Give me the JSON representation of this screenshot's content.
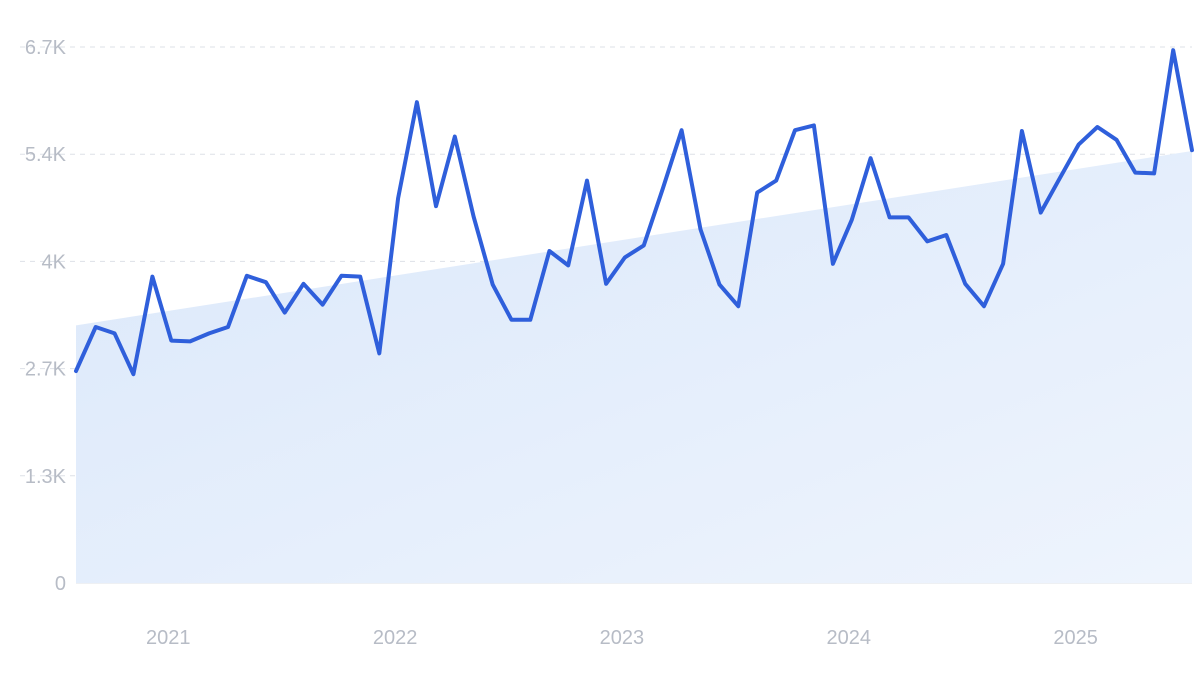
{
  "chart_data": {
    "type": "line",
    "title": "",
    "xlabel": "",
    "ylabel": "",
    "grid": true,
    "legend": "none",
    "ylim": [
      0,
      6700
    ],
    "xlim": [
      2020.58,
      2025.5
    ],
    "y_ticks": [
      {
        "value": 0,
        "label": "0"
      },
      {
        "value": 1340,
        "label": "1.3K"
      },
      {
        "value": 2680,
        "label": "2.7K"
      },
      {
        "value": 4020,
        "label": "4K"
      },
      {
        "value": 5360,
        "label": "5.4K"
      },
      {
        "value": 6700,
        "label": "6.7K"
      }
    ],
    "x_ticks": [
      {
        "value": 2021,
        "label": "2021"
      },
      {
        "value": 2022,
        "label": "2022"
      },
      {
        "value": 2023,
        "label": "2023"
      },
      {
        "value": 2024,
        "label": "2024"
      },
      {
        "value": 2025,
        "label": "2025"
      }
    ],
    "series": [
      {
        "color": "#2f5fdb",
        "x": [
          2020.58,
          2020.667,
          2020.75,
          2020.833,
          2020.917,
          2021.0,
          2021.083,
          2021.167,
          2021.25,
          2021.333,
          2021.417,
          2021.5,
          2021.583,
          2021.667,
          2021.75,
          2021.833,
          2021.917,
          2022.0,
          2022.083,
          2022.167,
          2022.25,
          2022.333,
          2022.417,
          2022.5,
          2022.583,
          2022.667,
          2022.75,
          2022.833,
          2022.917,
          2023.0,
          2023.083,
          2023.167,
          2023.25,
          2023.333,
          2023.417,
          2023.5,
          2023.583,
          2023.667,
          2023.75,
          2023.833,
          2023.917,
          2024.0,
          2024.083,
          2024.167,
          2024.25,
          2024.333,
          2024.417,
          2024.5,
          2024.583,
          2024.667,
          2024.75,
          2024.833,
          2024.917,
          2025.0,
          2025.083,
          2025.167,
          2025.25,
          2025.333,
          2025.417,
          2025.5
        ],
        "values": [
          2650,
          3200,
          3120,
          2610,
          3830,
          3030,
          3020,
          3120,
          3200,
          3840,
          3760,
          3380,
          3740,
          3480,
          3840,
          3830,
          2870,
          4810,
          6010,
          4710,
          5580,
          4580,
          3730,
          3290,
          3290,
          4150,
          3970,
          5030,
          3740,
          4070,
          4220,
          4930,
          5660,
          4420,
          3730,
          3460,
          4880,
          5030,
          5660,
          5720,
          3990,
          4540,
          5310,
          4570,
          4570,
          4270,
          4350,
          3740,
          3460,
          3990,
          5650,
          4630,
          5060,
          5480,
          5700,
          5540,
          5130,
          5120,
          6660,
          5410
        ]
      },
      {
        "type": "area",
        "color": "#dbe8fa",
        "x": [
          2020.58,
          2025.5
        ],
        "values": [
          3220,
          5400
        ]
      }
    ]
  }
}
